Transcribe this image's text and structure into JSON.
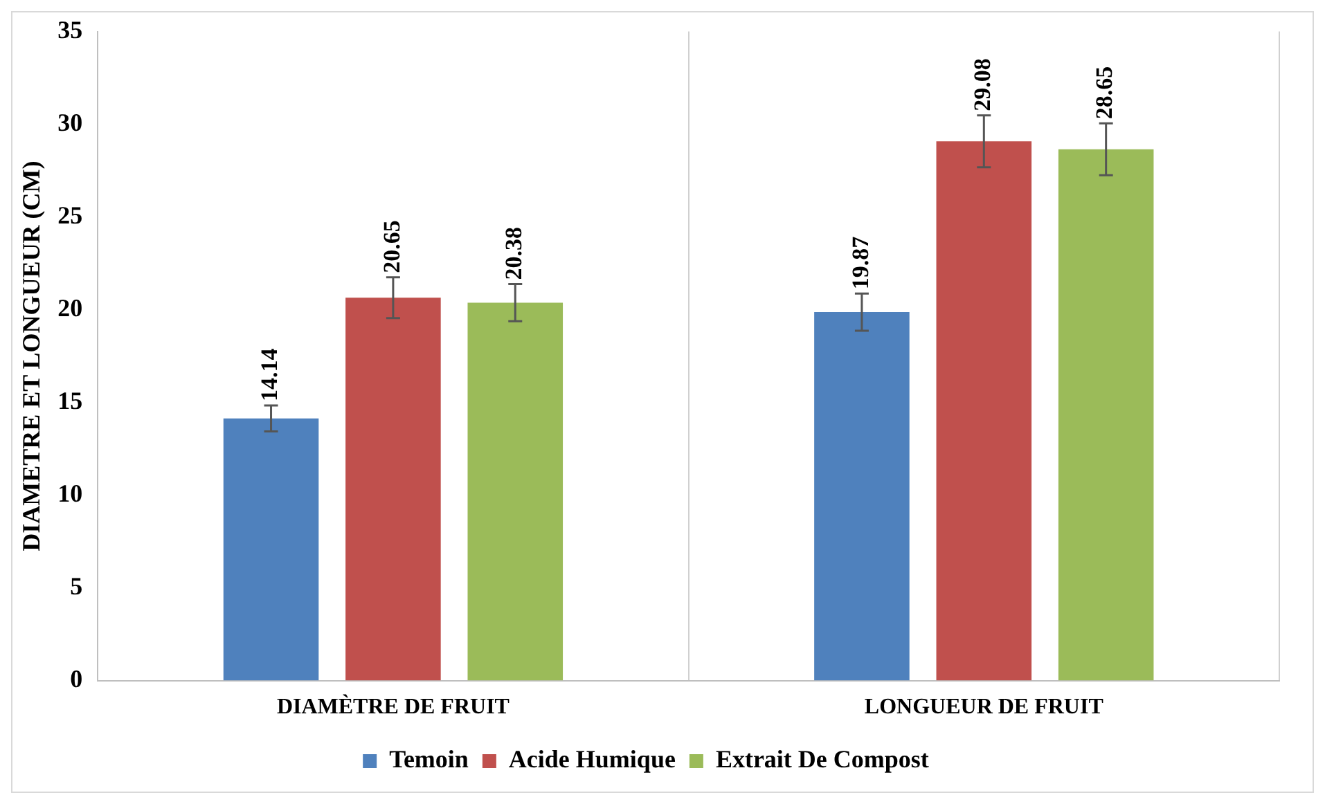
{
  "chart_data": {
    "type": "bar",
    "ylabel": "DIAMETRE ET LONGUEUR (CM)",
    "categories": [
      "DIAMÈTRE DE FRUIT",
      "LONGUEUR DE FRUIT"
    ],
    "series": [
      {
        "name": "Temoin",
        "color": "#4f81bd",
        "values": [
          14.14,
          19.87
        ],
        "errors": [
          0.7,
          1.0
        ]
      },
      {
        "name": "Acide Humique",
        "color": "#c0504d",
        "values": [
          20.65,
          29.08
        ],
        "errors": [
          1.1,
          1.4
        ]
      },
      {
        "name": "Extrait De Compost",
        "color": "#9bbb59",
        "values": [
          20.38,
          28.65
        ],
        "errors": [
          1.0,
          1.4
        ]
      }
    ],
    "ylim": [
      0,
      35
    ],
    "yticks": [
      0,
      5,
      10,
      15,
      20,
      25,
      30,
      35
    ],
    "grid": "x",
    "legend": "bottom",
    "data_labels": true
  }
}
